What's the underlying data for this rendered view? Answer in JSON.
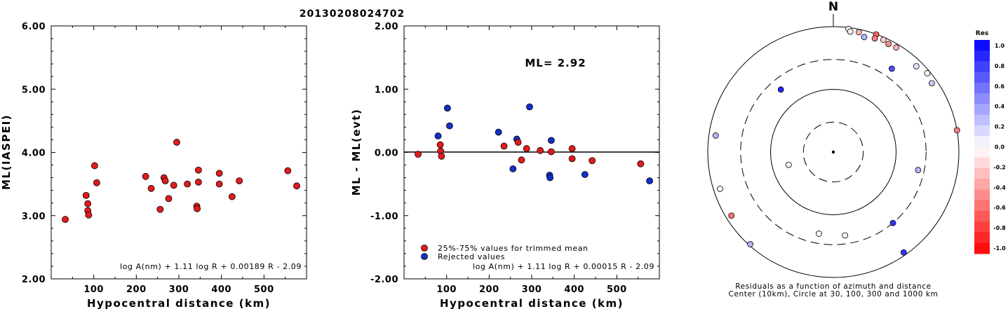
{
  "event_id": "20130208024702",
  "chart_data": [
    {
      "type": "scatter",
      "xlabel": "Hypocentral distance (km)",
      "ylabel": "ML(IASPEI)",
      "xlim": [
        0,
        600
      ],
      "ylim": [
        2.0,
        6.0
      ],
      "xticks": [
        "100",
        "200",
        "300",
        "400",
        "500"
      ],
      "yticks": [
        "2.00",
        "3.00",
        "4.00",
        "5.00",
        "6.00"
      ],
      "formula": "log A(nm) + 1.11 log R + 0.00189 R - 2.09",
      "point_color": "#e31a1c",
      "points": [
        [
          33,
          2.94
        ],
        [
          82,
          3.32
        ],
        [
          86,
          3.19
        ],
        [
          86,
          3.08
        ],
        [
          88,
          3.01
        ],
        [
          102,
          3.79
        ],
        [
          107,
          3.52
        ],
        [
          222,
          3.62
        ],
        [
          235,
          3.43
        ],
        [
          256,
          3.1
        ],
        [
          265,
          3.6
        ],
        [
          268,
          3.55
        ],
        [
          276,
          3.27
        ],
        [
          288,
          3.48
        ],
        [
          295,
          4.16
        ],
        [
          320,
          3.5
        ],
        [
          342,
          3.15
        ],
        [
          343,
          3.11
        ],
        [
          346,
          3.72
        ],
        [
          346,
          3.53
        ],
        [
          395,
          3.67
        ],
        [
          395,
          3.5
        ],
        [
          425,
          3.3
        ],
        [
          442,
          3.55
        ],
        [
          556,
          3.71
        ],
        [
          577,
          3.47
        ]
      ]
    },
    {
      "type": "scatter",
      "xlabel": "Hypocentral distance (km)",
      "ylabel": "ML - ML(evt)",
      "xlim": [
        0,
        600
      ],
      "ylim": [
        -2.0,
        2.0
      ],
      "xticks": [
        "100",
        "200",
        "300",
        "400",
        "500"
      ],
      "yticks": [
        "-2.00",
        "-1.00",
        "0.00",
        "1.00",
        "2.00"
      ],
      "ml_text": "ML= 2.92",
      "formula": "log A(nm) + 1.11 log R + 0.00015 R - 2.09",
      "legend": [
        {
          "label": "25%-75% values for trimmed mean",
          "color": "#e31a1c"
        },
        {
          "label": "Rejected values",
          "color": "#1030c8"
        }
      ],
      "points": [
        {
          "x": 33,
          "y": -0.03,
          "used": true
        },
        {
          "x": 80,
          "y": 0.26,
          "used": false
        },
        {
          "x": 85,
          "y": 0.12,
          "used": true
        },
        {
          "x": 86,
          "y": 0.02,
          "used": true
        },
        {
          "x": 88,
          "y": -0.06,
          "used": true
        },
        {
          "x": 102,
          "y": 0.7,
          "used": false
        },
        {
          "x": 107,
          "y": 0.42,
          "used": false
        },
        {
          "x": 222,
          "y": 0.32,
          "used": false
        },
        {
          "x": 235,
          "y": 0.1,
          "used": true
        },
        {
          "x": 256,
          "y": -0.26,
          "used": false
        },
        {
          "x": 265,
          "y": 0.21,
          "used": false
        },
        {
          "x": 268,
          "y": 0.16,
          "used": true
        },
        {
          "x": 276,
          "y": -0.12,
          "used": true
        },
        {
          "x": 288,
          "y": 0.06,
          "used": true
        },
        {
          "x": 295,
          "y": 0.72,
          "used": false
        },
        {
          "x": 320,
          "y": 0.03,
          "used": true
        },
        {
          "x": 342,
          "y": -0.36,
          "used": false
        },
        {
          "x": 343,
          "y": -0.4,
          "used": false
        },
        {
          "x": 346,
          "y": 0.19,
          "used": false
        },
        {
          "x": 346,
          "y": 0.01,
          "used": true
        },
        {
          "x": 395,
          "y": 0.06,
          "used": true
        },
        {
          "x": 395,
          "y": -0.1,
          "used": true
        },
        {
          "x": 425,
          "y": -0.35,
          "used": false
        },
        {
          "x": 442,
          "y": -0.13,
          "used": true
        },
        {
          "x": 556,
          "y": -0.18,
          "used": true
        },
        {
          "x": 577,
          "y": -0.45,
          "used": false
        }
      ]
    },
    {
      "type": "polar-scatter",
      "north_label": "N",
      "caption_line1": "Residuals as a function of azimuth and distance",
      "caption_line2": "Center (10km), Circle at 30, 100, 300 and 1000 km",
      "ring_distances_km": [
        30,
        100,
        300,
        1000
      ],
      "ring_styles": [
        "dashed",
        "solid",
        "dashed",
        "solid"
      ],
      "colorbar_title": "Res",
      "colorbar_ticks": [
        "1.0",
        "0.8",
        "0.6",
        "0.4",
        "0.2",
        "0.0",
        "-0.2",
        "-0.4",
        "-0.6",
        "-0.8",
        "-1.0"
      ],
      "colorbar_range": [
        -1.0,
        1.0
      ],
      "stations": [
        {
          "az": 7,
          "dist": 950,
          "res": -0.05
        },
        {
          "az": 8,
          "dist": 870,
          "res": -0.05
        },
        {
          "az": 12,
          "dist": 900,
          "res": -0.3
        },
        {
          "az": 15,
          "dist": 790,
          "res": 0.3
        },
        {
          "az": 20,
          "dist": 990,
          "res": -0.6
        },
        {
          "az": 20,
          "dist": 850,
          "res": -0.5
        },
        {
          "az": 24,
          "dist": 910,
          "res": -0.2
        },
        {
          "az": 27,
          "dist": 860,
          "res": -0.45
        },
        {
          "az": 31,
          "dist": 880,
          "res": -0.3
        },
        {
          "az": 44,
          "dist": 800,
          "res": 0.1
        },
        {
          "az": 50,
          "dist": 900,
          "res": -0.02
        },
        {
          "az": 55,
          "dist": 820,
          "res": 0.2
        },
        {
          "az": 35,
          "dist": 420,
          "res": 0.7
        },
        {
          "az": 80,
          "dist": 1000,
          "res": -0.5
        },
        {
          "az": 102,
          "dist": 240,
          "res": 0.3
        },
        {
          "az": 140,
          "dist": 300,
          "res": 0.8
        },
        {
          "az": 145,
          "dist": 900,
          "res": 0.8
        },
        {
          "az": 172,
          "dist": 220,
          "res": -0.05
        },
        {
          "az": 190,
          "dist": 210,
          "res": -0.02
        },
        {
          "az": 222,
          "dist": 950,
          "res": 0.3
        },
        {
          "az": 238,
          "dist": 820,
          "res": -0.55
        },
        {
          "az": 252,
          "dist": 790,
          "res": -0.05
        },
        {
          "az": 254,
          "dist": 55,
          "res": -0.02
        },
        {
          "az": 278,
          "dist": 780,
          "res": 0.3
        },
        {
          "az": 320,
          "dist": 200,
          "res": 0.85
        }
      ]
    }
  ]
}
